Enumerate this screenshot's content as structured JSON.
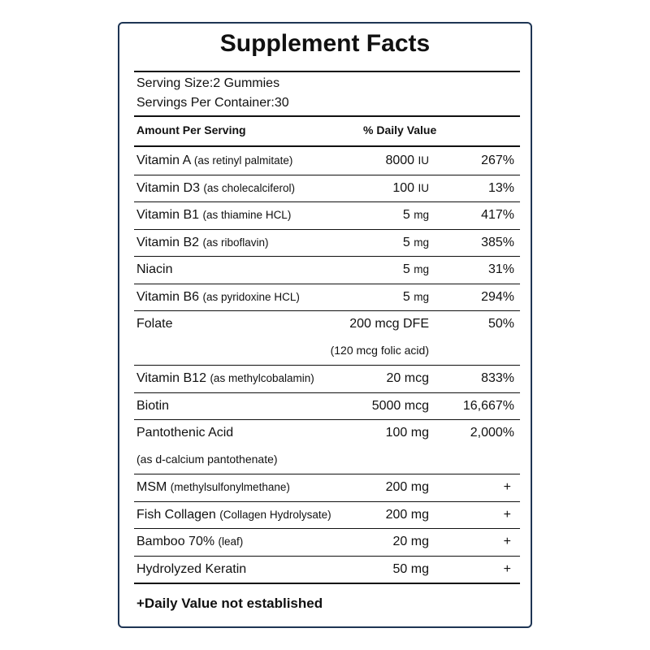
{
  "title": "Supplement Facts",
  "serving_size": "Serving Size:2 Gummies",
  "servings_per_container": "Servings Per Container:30",
  "header": {
    "amount": "Amount Per Serving",
    "daily_value": "% Daily Value"
  },
  "rows": [
    {
      "name": "Vitamin A",
      "note": "(as retinyl palmitate)",
      "amount": "8000",
      "unit": "IU",
      "dv": "267%"
    },
    {
      "name": "Vitamin D3",
      "note": "(as cholecalciferol)",
      "amount": "100",
      "unit": "IU",
      "dv": "13%"
    },
    {
      "name": "Vitamin B1",
      "note": "(as thiamine HCL)",
      "amount": "5",
      "unit": "mg",
      "dv": "417%"
    },
    {
      "name": "Vitamin B2",
      "note": "(as riboflavin)",
      "amount": "5",
      "unit": "mg",
      "dv": "385%"
    },
    {
      "name": "Niacin",
      "amount": "5",
      "unit": "mg",
      "dv": "31%"
    },
    {
      "name": "Vitamin B6",
      "note": "(as pyridoxine HCL)",
      "amount": "5",
      "unit": "mg",
      "dv": "294%"
    },
    {
      "name": "Folate",
      "amount": "200 mcg DFE",
      "dv": "50%",
      "sub": "(120 mcg folic acid)"
    },
    {
      "name": "Vitamin B12",
      "note": "(as methylcobalamin)",
      "amount": "20 mcg",
      "dv": "833%"
    },
    {
      "name": "Biotin",
      "amount": "5000 mcg",
      "dv": "16,667%"
    },
    {
      "name": "Pantothenic Acid",
      "amount": "100 mg",
      "dv": "2,000%",
      "sub": "(as d-calcium pantothenate)"
    },
    {
      "name": "MSM",
      "note": "(methylsulfonylmethane)",
      "amount": "200 mg",
      "dv": "+"
    },
    {
      "name": "Fish Collagen",
      "note": "(Collagen Hydrolysate)",
      "amount": "200 mg",
      "dv": "+"
    },
    {
      "name": "Bamboo 70%",
      "note": "(leaf)",
      "amount": "20 mg",
      "dv": "+"
    },
    {
      "name": "Hydrolyzed Keratin",
      "amount": "50 mg",
      "dv": "+"
    }
  ],
  "footnote": "+Daily Value not established"
}
